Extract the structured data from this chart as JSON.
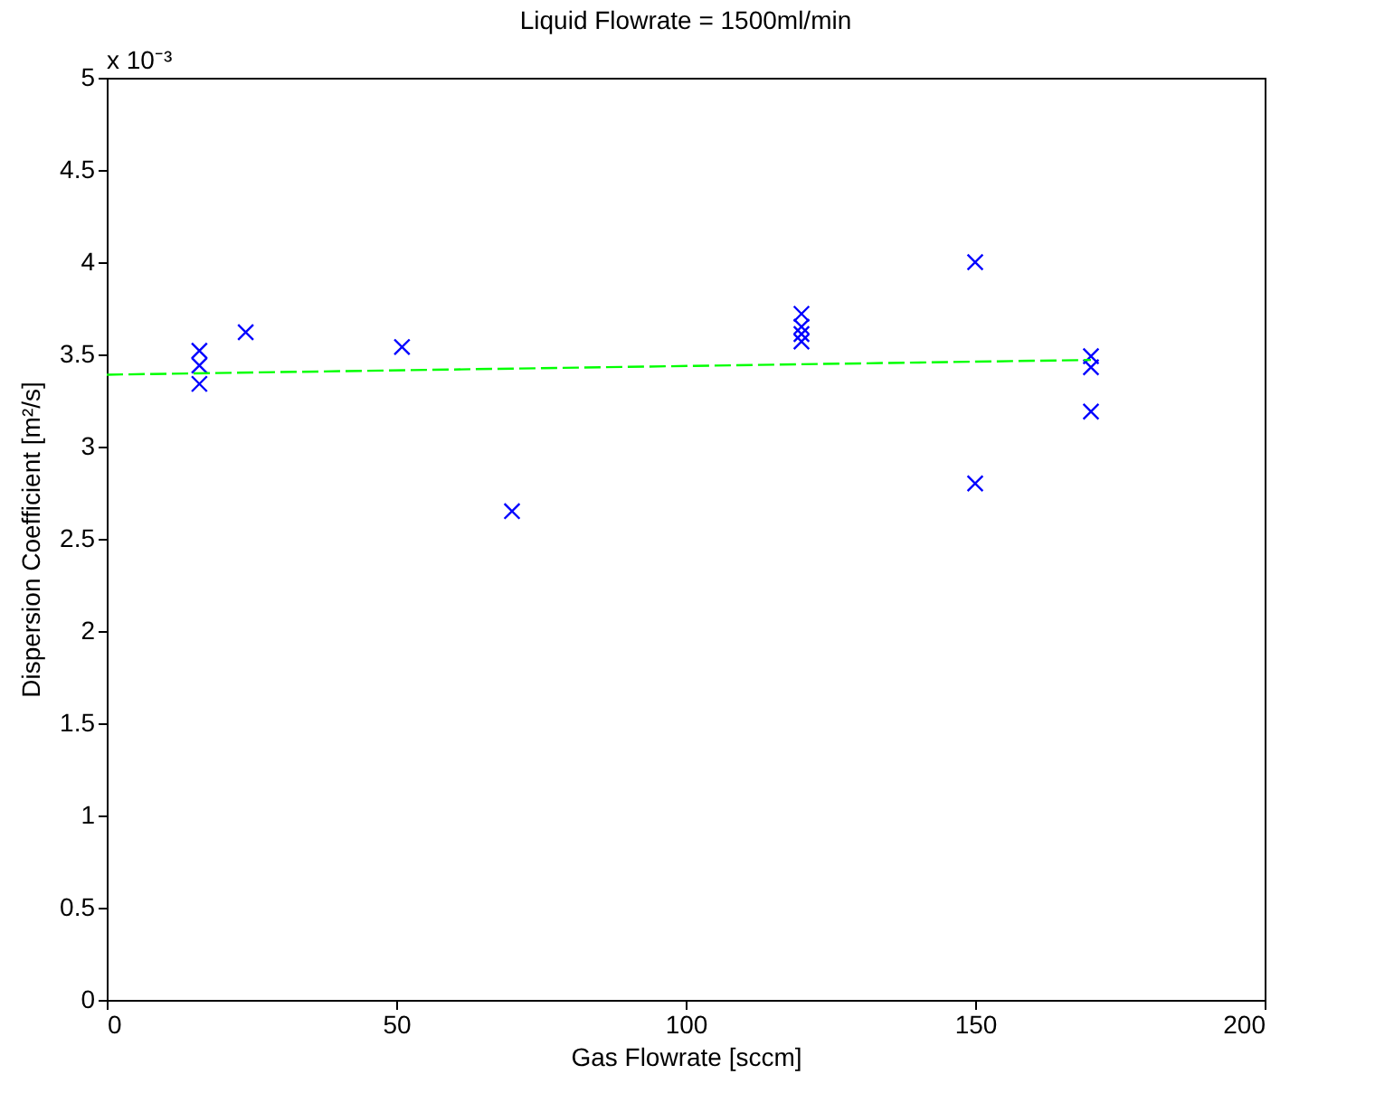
{
  "chart_data": {
    "type": "scatter",
    "title": "Liquid Flowrate = 1500ml/min",
    "xlabel": "Gas Flowrate [sccm]",
    "ylabel": "Dispersion Coefficient [m²/s]",
    "annotations": [
      "x 10⁻³"
    ],
    "xlim": [
      0,
      200
    ],
    "xticks": [
      0,
      50,
      100,
      150,
      200
    ],
    "ylim": [
      0,
      5
    ],
    "yticks": [
      0,
      0.5,
      1,
      1.5,
      2,
      2.5,
      3,
      3.5,
      4,
      4.5,
      5
    ],
    "grid": false,
    "series": [
      {
        "color": "#0000ff",
        "marker": "cross",
        "x": [
          16,
          16,
          16,
          24,
          51,
          70,
          120,
          120,
          120,
          120,
          150,
          150,
          170,
          170,
          170
        ],
        "values": [
          3.52,
          3.44,
          3.34,
          3.62,
          3.54,
          2.65,
          3.72,
          3.65,
          3.61,
          3.57,
          4.0,
          2.8,
          3.49,
          3.43,
          3.19
        ]
      },
      {
        "type": "line",
        "color": "#00ff00",
        "line_style": "dashed",
        "x": [
          0,
          170
        ],
        "values": [
          3.39,
          3.47
        ]
      }
    ]
  }
}
